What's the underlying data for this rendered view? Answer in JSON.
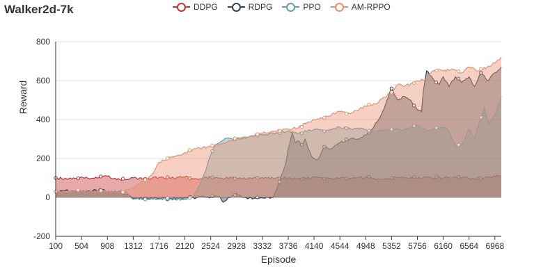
{
  "chart_data": {
    "type": "area",
    "title": "Walker2d-7k",
    "xlabel": "Episode",
    "ylabel": "Reward",
    "ylim": [
      -200,
      800
    ],
    "yticks": [
      -200,
      0,
      200,
      400,
      600,
      800
    ],
    "xlim": [
      100,
      7068
    ],
    "xticks": [
      100,
      504,
      908,
      1312,
      1716,
      2120,
      2524,
      2928,
      3332,
      3736,
      4140,
      4544,
      4948,
      5352,
      5756,
      6160,
      6564,
      6968
    ],
    "grid": "horizontal",
    "legend_position": "top-center",
    "series": [
      {
        "name": "DDPG",
        "color": "#c23531",
        "points": [
          [
            100,
            100
          ],
          [
            300,
            95
          ],
          [
            504,
            105
          ],
          [
            700,
            98
          ],
          [
            908,
            108
          ],
          [
            1100,
            92
          ],
          [
            1312,
            100
          ],
          [
            1500,
            95
          ],
          [
            1716,
            102
          ],
          [
            1900,
            98
          ],
          [
            2120,
            105
          ],
          [
            2300,
            96
          ],
          [
            2524,
            103
          ],
          [
            2700,
            98
          ],
          [
            2928,
            100
          ],
          [
            3100,
            95
          ],
          [
            3332,
            102
          ],
          [
            3500,
            98
          ],
          [
            3736,
            100
          ],
          [
            3900,
            95
          ],
          [
            4140,
            103
          ],
          [
            4300,
            96
          ],
          [
            4544,
            100
          ],
          [
            4700,
            98
          ],
          [
            4948,
            104
          ],
          [
            5100,
            93
          ],
          [
            5352,
            100
          ],
          [
            5500,
            105
          ],
          [
            5756,
            98
          ],
          [
            5900,
            102
          ],
          [
            6160,
            100
          ],
          [
            6400,
            105
          ],
          [
            6564,
            96
          ],
          [
            6800,
            100
          ],
          [
            7068,
            112
          ]
        ]
      },
      {
        "name": "RDPG",
        "color": "#2f4554",
        "points": [
          [
            100,
            30
          ],
          [
            250,
            35
          ],
          [
            400,
            30
          ],
          [
            600,
            33
          ],
          [
            800,
            38
          ],
          [
            950,
            30
          ],
          [
            1100,
            28
          ],
          [
            1250,
            10
          ],
          [
            1312,
            -5
          ],
          [
            1500,
            -5
          ],
          [
            1716,
            -5
          ],
          [
            1900,
            -5
          ],
          [
            2120,
            -3
          ],
          [
            2300,
            -2
          ],
          [
            2400,
            5
          ],
          [
            2524,
            0
          ],
          [
            2650,
            5
          ],
          [
            2720,
            -25
          ],
          [
            2800,
            0
          ],
          [
            2928,
            20
          ],
          [
            3050,
            0
          ],
          [
            3200,
            -5
          ],
          [
            3332,
            -3
          ],
          [
            3500,
            0
          ],
          [
            3600,
            80
          ],
          [
            3700,
            180
          ],
          [
            3736,
            250
          ],
          [
            3800,
            330
          ],
          [
            3850,
            280
          ],
          [
            3900,
            290
          ],
          [
            3950,
            270
          ],
          [
            4000,
            300
          ],
          [
            4050,
            250
          ],
          [
            4100,
            210
          ],
          [
            4140,
            200
          ],
          [
            4200,
            195
          ],
          [
            4300,
            260
          ],
          [
            4400,
            250
          ],
          [
            4544,
            280
          ],
          [
            4700,
            300
          ],
          [
            4850,
            300
          ],
          [
            4948,
            320
          ],
          [
            5050,
            350
          ],
          [
            5150,
            400
          ],
          [
            5250,
            470
          ],
          [
            5352,
            560
          ],
          [
            5450,
            500
          ],
          [
            5550,
            520
          ],
          [
            5650,
            500
          ],
          [
            5756,
            450
          ],
          [
            5820,
            440
          ],
          [
            5850,
            550
          ],
          [
            5900,
            650
          ],
          [
            6000,
            610
          ],
          [
            6100,
            580
          ],
          [
            6160,
            620
          ],
          [
            6250,
            570
          ],
          [
            6350,
            620
          ],
          [
            6450,
            590
          ],
          [
            6564,
            620
          ],
          [
            6650,
            570
          ],
          [
            6750,
            640
          ],
          [
            6850,
            600
          ],
          [
            6968,
            640
          ],
          [
            7068,
            670
          ]
        ]
      },
      {
        "name": "PPO",
        "color": "#61a0a8",
        "points": [
          [
            100,
            30
          ],
          [
            500,
            30
          ],
          [
            908,
            30
          ],
          [
            1200,
            30
          ],
          [
            1312,
            -10
          ],
          [
            1500,
            -10
          ],
          [
            1716,
            -10
          ],
          [
            1900,
            -8
          ],
          [
            2120,
            -10
          ],
          [
            2250,
            5
          ],
          [
            2350,
            60
          ],
          [
            2450,
            140
          ],
          [
            2524,
            220
          ],
          [
            2600,
            270
          ],
          [
            2700,
            290
          ],
          [
            2800,
            305
          ],
          [
            2928,
            300
          ],
          [
            3100,
            310
          ],
          [
            3332,
            320
          ],
          [
            3500,
            330
          ],
          [
            3736,
            340
          ],
          [
            3900,
            330
          ],
          [
            4140,
            350
          ],
          [
            4300,
            340
          ],
          [
            4544,
            360
          ],
          [
            4700,
            355
          ],
          [
            4948,
            350
          ],
          [
            5100,
            340
          ],
          [
            5352,
            350
          ],
          [
            5550,
            350
          ],
          [
            5756,
            370
          ],
          [
            5900,
            345
          ],
          [
            6000,
            350
          ],
          [
            6160,
            360
          ],
          [
            6250,
            340
          ],
          [
            6350,
            260
          ],
          [
            6450,
            270
          ],
          [
            6564,
            350
          ],
          [
            6650,
            300
          ],
          [
            6700,
            360
          ],
          [
            6800,
            460
          ],
          [
            6880,
            380
          ],
          [
            6968,
            420
          ],
          [
            7068,
            520
          ]
        ]
      },
      {
        "name": "AM-RPPO",
        "color": "#e98f6f",
        "points": [
          [
            100,
            30
          ],
          [
            500,
            35
          ],
          [
            908,
            30
          ],
          [
            1100,
            25
          ],
          [
            1200,
            40
          ],
          [
            1312,
            50
          ],
          [
            1500,
            90
          ],
          [
            1600,
            115
          ],
          [
            1716,
            180
          ],
          [
            1850,
            200
          ],
          [
            2000,
            215
          ],
          [
            2120,
            230
          ],
          [
            2300,
            250
          ],
          [
            2524,
            260
          ],
          [
            2700,
            275
          ],
          [
            2928,
            300
          ],
          [
            3100,
            310
          ],
          [
            3332,
            330
          ],
          [
            3500,
            340
          ],
          [
            3736,
            350
          ],
          [
            3900,
            360
          ],
          [
            4140,
            400
          ],
          [
            4300,
            410
          ],
          [
            4544,
            440
          ],
          [
            4700,
            430
          ],
          [
            4948,
            470
          ],
          [
            5100,
            480
          ],
          [
            5352,
            540
          ],
          [
            5450,
            580
          ],
          [
            5550,
            570
          ],
          [
            5756,
            600
          ],
          [
            5900,
            610
          ],
          [
            6000,
            650
          ],
          [
            6160,
            650
          ],
          [
            6300,
            660
          ],
          [
            6450,
            640
          ],
          [
            6564,
            670
          ],
          [
            6700,
            650
          ],
          [
            6850,
            670
          ],
          [
            6968,
            690
          ],
          [
            7068,
            720
          ]
        ]
      }
    ]
  }
}
